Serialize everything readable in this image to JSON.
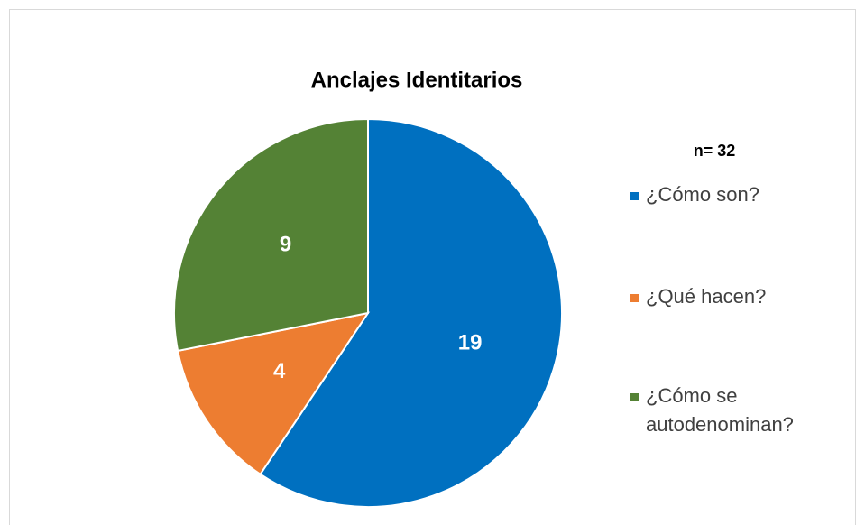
{
  "chart_data": {
    "type": "pie",
    "title": "Anclajes Identitarios",
    "annotation": "n= 32",
    "categories": [
      "¿Cómo son?",
      "¿Qué hacen?",
      "¿Cómo se autodenominan?"
    ],
    "values": [
      19,
      4,
      9
    ],
    "colors": [
      "#0070c0",
      "#ed7d31",
      "#548235"
    ],
    "legend": "right"
  }
}
